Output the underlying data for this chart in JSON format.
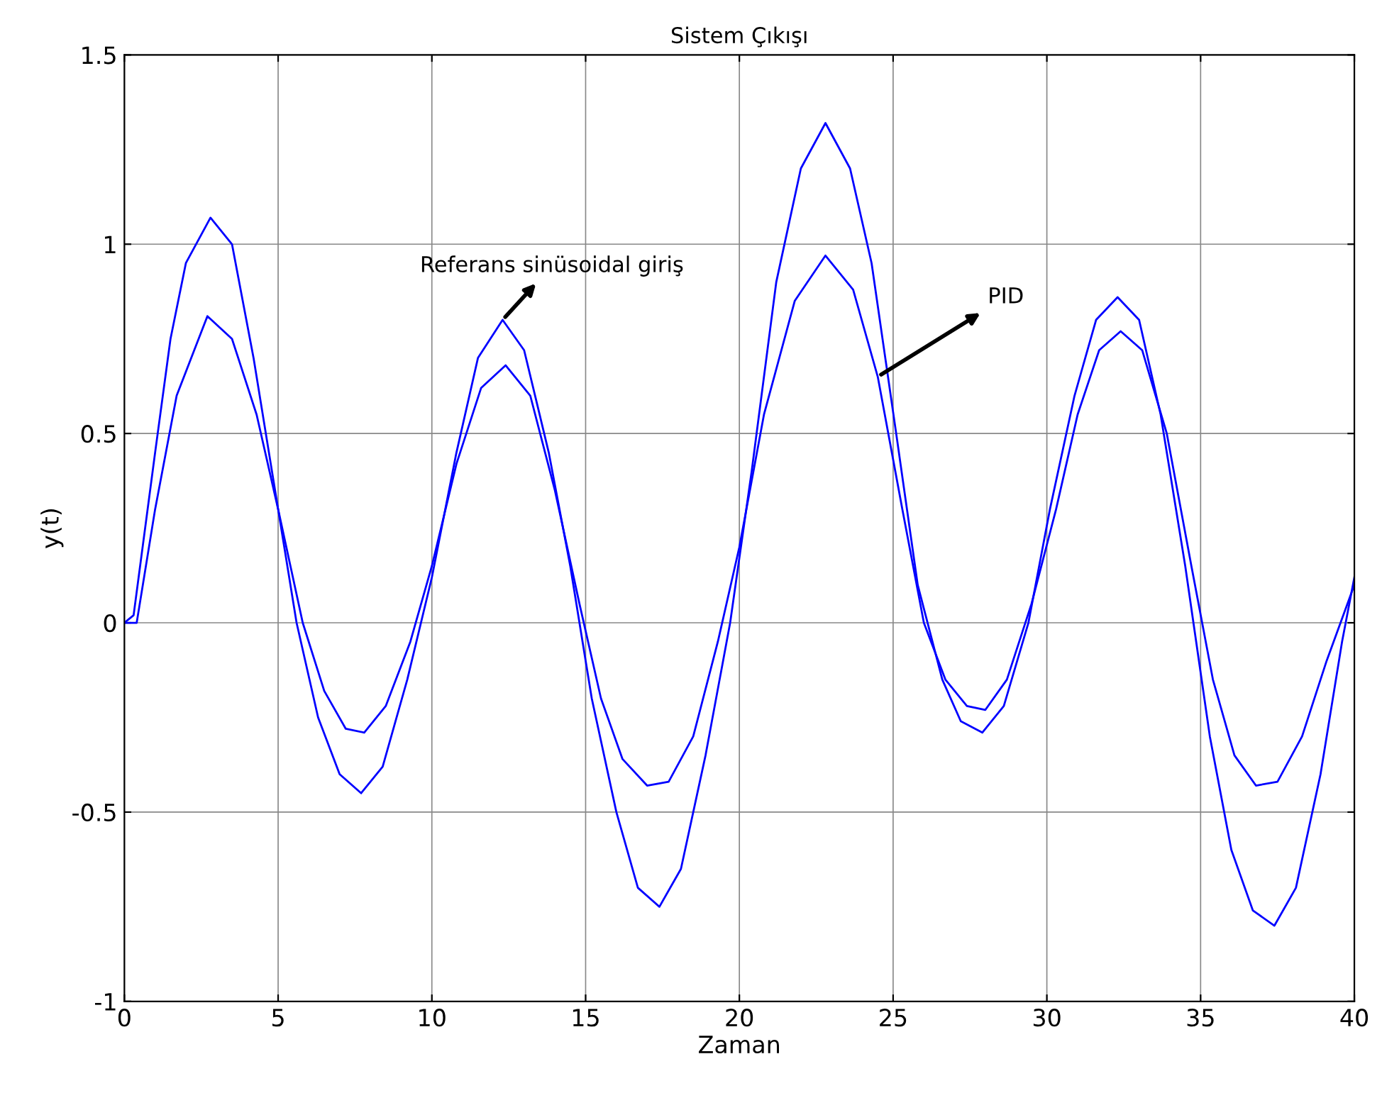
{
  "chart_data": {
    "type": "line",
    "title": "Sistem Çıkışı",
    "xlabel": "Zaman",
    "ylabel": "y(t)",
    "xlim": [
      0,
      40
    ],
    "xticks": [
      0,
      5,
      10,
      15,
      20,
      25,
      30,
      35,
      40
    ],
    "ylim": [
      -1,
      1.5
    ],
    "yticks": [
      -1,
      -0.5,
      0,
      0.5,
      1,
      1.5
    ],
    "grid": true,
    "annotations": [
      {
        "text": "Referans sinüsoidal giriş",
        "x": 12.3,
        "y": 0.8
      },
      {
        "text": "PID",
        "x": 24.5,
        "y": 0.65
      }
    ],
    "series": [
      {
        "color": "#0000ff",
        "x": [
          0,
          0.3,
          1,
          1.5,
          2,
          2.8,
          3.5,
          4.2,
          5,
          5.6,
          6.3,
          7,
          7.7,
          8.4,
          9.2,
          10,
          10.8,
          11.5,
          12.3,
          13,
          13.8,
          14.5,
          15.2,
          16,
          16.7,
          17.4,
          18.1,
          18.9,
          19.7,
          20.4,
          21.2,
          22,
          22.8,
          23.6,
          24.3,
          25.1,
          25.8,
          26.6,
          27.2,
          27.9,
          28.6,
          29.4,
          30.1,
          30.9,
          31.6,
          32.3,
          33,
          33.7,
          34.5,
          35.3,
          36,
          36.7,
          37.4,
          38.1,
          38.9,
          39.6,
          40
        ],
        "values": [
          0,
          0.02,
          0.45,
          0.75,
          0.95,
          1.07,
          1.0,
          0.7,
          0.3,
          0,
          -0.25,
          -0.4,
          -0.45,
          -0.38,
          -0.15,
          0.12,
          0.45,
          0.7,
          0.8,
          0.72,
          0.45,
          0.15,
          -0.2,
          -0.5,
          -0.7,
          -0.75,
          -0.65,
          -0.35,
          0,
          0.4,
          0.9,
          1.2,
          1.32,
          1.2,
          0.95,
          0.5,
          0.1,
          -0.15,
          -0.26,
          -0.29,
          -0.22,
          0,
          0.3,
          0.6,
          0.8,
          0.86,
          0.8,
          0.55,
          0.15,
          -0.3,
          -0.6,
          -0.76,
          -0.8,
          -0.7,
          -0.4,
          -0.05,
          0.12
        ]
      },
      {
        "color": "#0000ff",
        "x": [
          0,
          0.4,
          1,
          1.7,
          2.7,
          3.5,
          4.3,
          5,
          5.8,
          6.5,
          7.2,
          7.8,
          8.5,
          9.3,
          10,
          10.8,
          11.6,
          12.4,
          13.2,
          14,
          14.8,
          15.5,
          16.2,
          17,
          17.7,
          18.5,
          19.3,
          20,
          20.8,
          21.8,
          22.8,
          23.7,
          24.5,
          25.3,
          26,
          26.7,
          27.4,
          28,
          28.7,
          29.5,
          30.3,
          31,
          31.7,
          32.4,
          33.1,
          33.9,
          34.7,
          35.4,
          36.1,
          36.8,
          37.5,
          38.3,
          39.1,
          40
        ],
        "values": [
          0,
          0,
          0.3,
          0.6,
          0.81,
          0.75,
          0.55,
          0.3,
          0,
          -0.18,
          -0.28,
          -0.29,
          -0.22,
          -0.05,
          0.15,
          0.42,
          0.62,
          0.68,
          0.6,
          0.35,
          0.05,
          -0.2,
          -0.36,
          -0.43,
          -0.42,
          -0.3,
          -0.05,
          0.2,
          0.55,
          0.85,
          0.97,
          0.88,
          0.65,
          0.3,
          0,
          -0.15,
          -0.22,
          -0.23,
          -0.15,
          0.05,
          0.3,
          0.55,
          0.72,
          0.77,
          0.72,
          0.5,
          0.15,
          -0.15,
          -0.35,
          -0.43,
          -0.42,
          -0.3,
          -0.1,
          0.1
        ]
      }
    ]
  }
}
